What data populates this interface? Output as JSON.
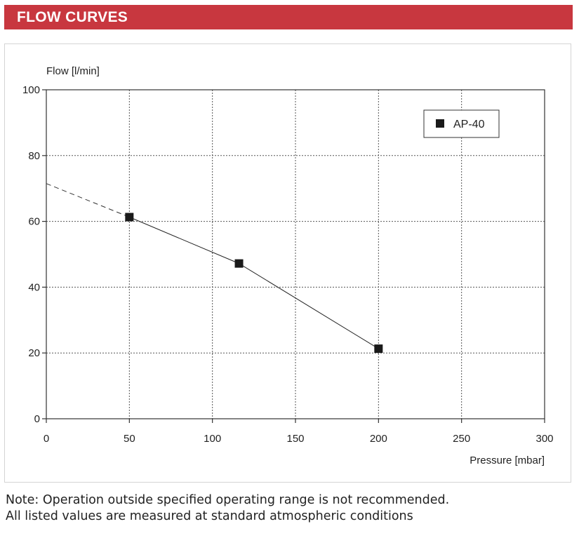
{
  "header": {
    "title": "FLOW CURVES"
  },
  "chart_data": {
    "type": "line",
    "title": "",
    "ylabel": "Flow [l/min]",
    "xlabel": "Pressure [mbar]",
    "xlim": [
      0,
      300
    ],
    "ylim": [
      0,
      100
    ],
    "xticks": [
      0,
      50,
      100,
      150,
      200,
      250,
      300
    ],
    "yticks": [
      0,
      20,
      40,
      60,
      80,
      100
    ],
    "grid": true,
    "legend_position": "top-right",
    "series": [
      {
        "name": "AP-40",
        "marker": "square",
        "color": "#1a1a1a",
        "x": [
          50,
          116,
          200
        ],
        "y": [
          61.3,
          47.2,
          21.3
        ]
      }
    ],
    "extrapolation": {
      "style": "dashed",
      "x": [
        0,
        50
      ],
      "y": [
        71.5,
        61.3
      ]
    }
  },
  "note": {
    "line1": "Note: Operation outside specified operating range is not recommended.",
    "line2": "All listed values are measured at standard atmospheric conditions"
  }
}
